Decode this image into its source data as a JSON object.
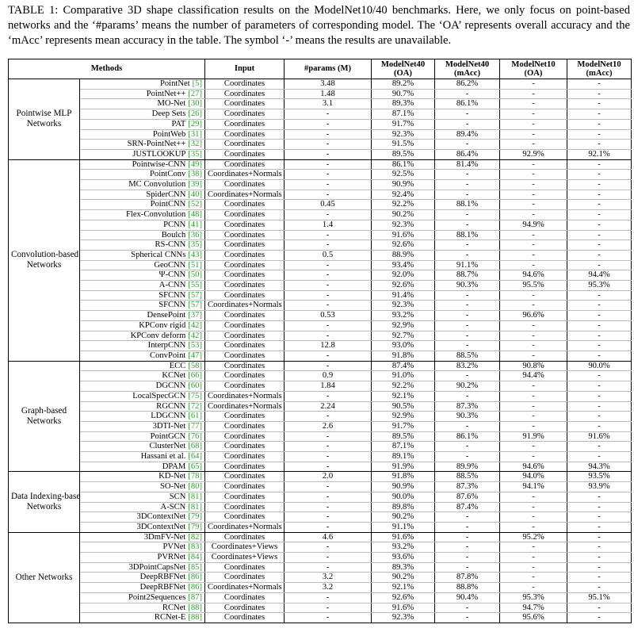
{
  "caption": "TABLE 1: Comparative 3D shape classification results on the ModelNet10/40 benchmarks. Here, we only focus on point-based networks and the ‘#params’ means the number of parameters of corresponding model. The ‘OA’ represents overall accuracy and the ‘mAcc’ represents mean accuracy in the table. The symbol ‘-’ means the results are unavailable.",
  "table": {
    "headers": [
      [
        "Methods"
      ],
      [
        "Input"
      ],
      [
        "#params (M)"
      ],
      [
        "ModelNet40",
        "(OA)"
      ],
      [
        "ModelNet40",
        "(mAcc)"
      ],
      [
        "ModelNet10",
        "(OA)"
      ],
      [
        "ModelNet10",
        "(mAcc)"
      ]
    ],
    "groups": [
      {
        "name": [
          "Pointwise MLP",
          "Networks"
        ],
        "rows": [
          [
            "PointNet",
            "[5]",
            "Coordinates",
            "3.48",
            "89.2%",
            "86.2%",
            "-",
            "-"
          ],
          [
            "PointNet++",
            "[27]",
            "Coordinates",
            "1.48",
            "90.7%",
            "-",
            "-",
            "-"
          ],
          [
            "MO-Net",
            "[30]",
            "Coordinates",
            "3.1",
            "89.3%",
            "86.1%",
            "-",
            "-"
          ],
          [
            "Deep Sets",
            "[26]",
            "Coordinates",
            "-",
            "87.1%",
            "-",
            "-",
            "-"
          ],
          [
            "PAT",
            "[29]",
            "Coordinates",
            "-",
            "91.7%",
            "-",
            "-",
            "-"
          ],
          [
            "PointWeb",
            "[31]",
            "Coordinates",
            "-",
            "92.3%",
            "89.4%",
            "-",
            "-"
          ],
          [
            "SRN-PointNet++",
            "[32]",
            "Coordinates",
            "-",
            "91.5%",
            "-",
            "-",
            "-"
          ],
          [
            "JUSTLOOKUP",
            "[35]",
            "Coordinates",
            "-",
            "89.5%",
            "86.4%",
            "92.9%",
            "92.1%"
          ]
        ]
      },
      {
        "name": [
          "Convolution-based",
          "Networks"
        ],
        "rows": [
          [
            "Pointwise-CNN",
            "[49]",
            "Coordinates",
            "-",
            "86.1%",
            "81.4%",
            "-",
            "-"
          ],
          [
            "PointConv",
            "[38]",
            "Coordinates+Normals",
            "-",
            "92.5%",
            "-",
            "-",
            "-"
          ],
          [
            "MC Convolution",
            "[39]",
            "Coordinates",
            "-",
            "90.9%",
            "-",
            "-",
            "-"
          ],
          [
            "SpiderCNN",
            "[40]",
            "Coordinates+Normals",
            "-",
            "92.4%",
            "-",
            "-",
            "-"
          ],
          [
            "PointCNN",
            "[52]",
            "Coordinates",
            "0.45",
            "92.2%",
            "88.1%",
            "-",
            "-"
          ],
          [
            "Flex-Convolution",
            "[48]",
            "Coordinates",
            "-",
            "90.2%",
            "-",
            "-",
            "-"
          ],
          [
            "PCNN",
            "[41]",
            "Coordinates",
            "1.4",
            "92.3%",
            "-",
            "94.9%",
            "-"
          ],
          [
            "Boulch",
            "[36]",
            "Coordinates",
            "-",
            "91.6%",
            "88.1%",
            "-",
            "-"
          ],
          [
            "RS-CNN",
            "[35]",
            "Coordinates",
            "-",
            "92.6%",
            "-",
            "-",
            "-"
          ],
          [
            "Spherical CNNs",
            "[43]",
            "Coordinates",
            "0.5",
            "88.9%",
            "-",
            "-",
            "-"
          ],
          [
            "GeoCNN",
            "[51]",
            "Coordinates",
            "-",
            "93.4%",
            "91.1%",
            "-",
            "-"
          ],
          [
            "Ψ-CNN",
            "[50]",
            "Coordinates",
            "-",
            "92.0%",
            "88.7%",
            "94.6%",
            "94.4%"
          ],
          [
            "A-CNN",
            "[55]",
            "Coordinates",
            "-",
            "92.6%",
            "90.3%",
            "95.5%",
            "95.3%"
          ],
          [
            "SFCNN",
            "[57]",
            "Coordinates",
            "-",
            "91.4%",
            "-",
            "-",
            "-"
          ],
          [
            "SFCNN",
            "[57]",
            "Coordinates+Normals",
            "-",
            "92.3%",
            "-",
            "-",
            "-"
          ],
          [
            "DensePoint",
            "[37]",
            "Coordinates",
            "0.53",
            "93.2%",
            "-",
            "96.6%",
            "-"
          ],
          [
            "KPConv rigid",
            "[42]",
            "Coordinates",
            "-",
            "92.9%",
            "-",
            "-",
            "-"
          ],
          [
            "KPConv deform",
            "[42]",
            "Coordinates",
            "-",
            "92.7%",
            "-",
            "-",
            "-"
          ],
          [
            "InterpCNN",
            "[53]",
            "Coordinates",
            "12.8",
            "93.0%",
            "-",
            "-",
            "-"
          ],
          [
            "ConvPoint",
            "[47]",
            "Coordinates",
            "-",
            "91.8%",
            "88.5%",
            "-",
            "-"
          ]
        ]
      },
      {
        "name": [
          "Graph-based",
          "Networks"
        ],
        "rows": [
          [
            "ECC",
            "[58]",
            "Coordinates",
            "-",
            "87.4%",
            "83.2%",
            "90.8%",
            "90.0%"
          ],
          [
            "KCNet",
            "[66]",
            "Coordinates",
            "0.9",
            "91.0%",
            "-",
            "94.4%",
            "-"
          ],
          [
            "DGCNN",
            "[60]",
            "Coordinates",
            "1.84",
            "92.2%",
            "90.2%",
            "-",
            "-"
          ],
          [
            "LocalSpecGCN",
            "[75]",
            "Coordinates+Normals",
            "-",
            "92.1%",
            "-",
            "-",
            "-"
          ],
          [
            "RGCNN",
            "[72]",
            "Coordinates+Normals",
            "2.24",
            "90.5%",
            "87.3%",
            "-",
            "-"
          ],
          [
            "LDGCNN",
            "[61]",
            "Coordinates",
            "-",
            "92.9%",
            "90.3%",
            "-",
            "-"
          ],
          [
            "3DTI-Net",
            "[77]",
            "Coordinates",
            "2.6",
            "91.7%",
            "-",
            "-",
            "-"
          ],
          [
            "PointGCN",
            "[76]",
            "Coordinates",
            "-",
            "89.5%",
            "86.1%",
            "91.9%",
            "91.6%"
          ],
          [
            "ClusterNet",
            "[68]",
            "Coordinates",
            "-",
            "87.1%",
            "-",
            "-",
            "-"
          ],
          [
            "Hassani et al.",
            "[64]",
            "Coordinates",
            "-",
            "89.1%",
            "-",
            "-",
            "-"
          ],
          [
            "DPAM",
            "[65]",
            "Coordinates",
            "-",
            "91.9%",
            "89.9%",
            "94.6%",
            "94.3%"
          ]
        ]
      },
      {
        "name": [
          "Data Indexing-based",
          "Networks"
        ],
        "rows": [
          [
            "KD-Net",
            "[78]",
            "Coordinates",
            "2.0",
            "91.8%",
            "88.5%",
            "94.0%",
            "93.5%"
          ],
          [
            "SO-Net",
            "[80]",
            "Coordinates",
            "-",
            "90.9%",
            "87.3%",
            "94.1%",
            "93.9%"
          ],
          [
            "SCN",
            "[81]",
            "Coordinates",
            "-",
            "90.0%",
            "87.6%",
            "-",
            "-"
          ],
          [
            "A-SCN",
            "[81]",
            "Coordinates",
            "-",
            "89.8%",
            "87.4%",
            "-",
            "-"
          ],
          [
            "3DContextNet",
            "[79]",
            "Coordinates",
            "-",
            "90.2%",
            "-",
            "-",
            "-"
          ],
          [
            "3DContextNet",
            "[79]",
            "Coordinates+Normals",
            "-",
            "91.1%",
            "-",
            "-",
            "-"
          ]
        ]
      },
      {
        "name": [
          "Other Networks"
        ],
        "rows": [
          [
            "3DmFV-Net",
            "[82]",
            "Coordinates",
            "4.6",
            "91.6%",
            "-",
            "95.2%",
            "-"
          ],
          [
            "PVNet",
            "[83]",
            "Coordinates+Views",
            "-",
            "93.2%",
            "-",
            "-",
            "-"
          ],
          [
            "PVRNet",
            "[84]",
            "Coordinates+Views",
            "-",
            "93.6%",
            "-",
            "-",
            "-"
          ],
          [
            "3DPointCapsNet",
            "[85]",
            "Coordinates",
            "-",
            "89.3%",
            "-",
            "-",
            "-"
          ],
          [
            "DeepRBFNet",
            "[86]",
            "Coordinates",
            "3.2",
            "90.2%",
            "87.8%",
            "-",
            "-"
          ],
          [
            "DeepRBFNet",
            "[86]",
            "Coordinates+Normals",
            "3.2",
            "92.1%",
            "88.8%",
            "-",
            "-"
          ],
          [
            "Point2Sequences",
            "[87]",
            "Coordinates",
            "-",
            "92.6%",
            "90.4%",
            "95.3%",
            "95.1%"
          ],
          [
            "RCNet",
            "[88]",
            "Coordinates",
            "-",
            "91.6%",
            "-",
            "94.7%",
            "-"
          ],
          [
            "RCNet-E",
            "[88]",
            "Coordinates",
            "-",
            "92.3%",
            "-",
            "95.6%",
            "-"
          ]
        ]
      }
    ]
  }
}
